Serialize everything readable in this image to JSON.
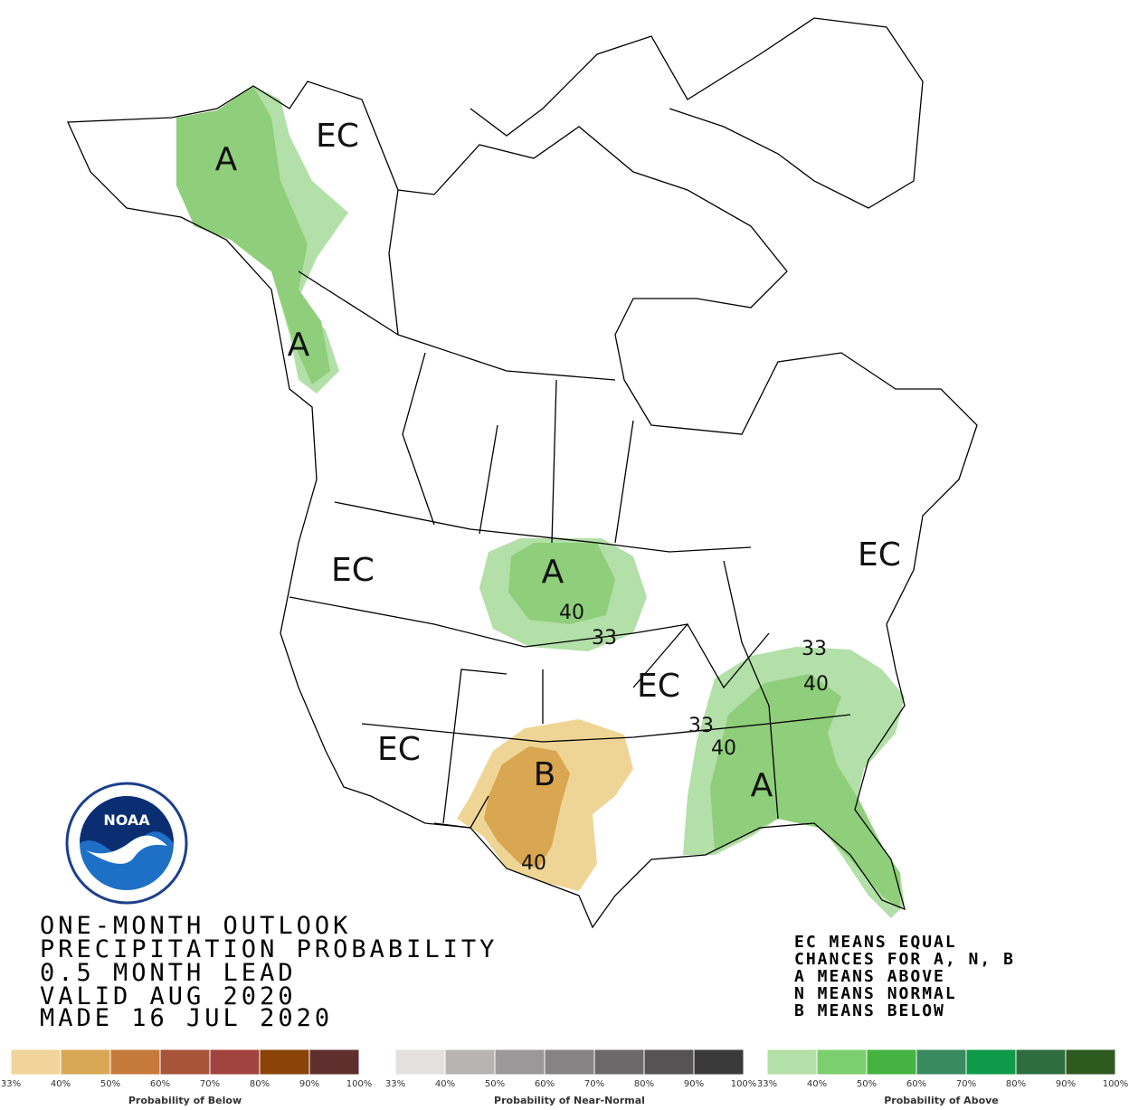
{
  "title_lines": [
    "ONE-MONTH OUTLOOK",
    "PRECIPITATION PROBABILITY",
    "0.5 MONTH LEAD",
    "VALID AUG 2020",
    "MADE 16 JUL 2020"
  ],
  "note_lines": [
    "EC MEANS EQUAL",
    "CHANCES FOR A, N, B",
    "A MEANS ABOVE",
    "N MEANS NORMAL",
    "B MEANS BELOW"
  ],
  "logo_text": "NOAA",
  "map_labels": [
    "EC",
    "A",
    "A",
    "EC",
    "A",
    "40",
    "33",
    "EC",
    "EC",
    "B",
    "40",
    "EC",
    "33",
    "40",
    "33",
    "40",
    "A"
  ],
  "color_scales": [
    {
      "title": "Probability of Below",
      "colors": [
        "#f0d49a",
        "#d9a856",
        "#c57a3c",
        "#a8543a",
        "#a1443f",
        "#8a4407",
        "#5e2f2d"
      ],
      "ticks": [
        "33%",
        "40%",
        "50%",
        "60%",
        "70%",
        "80%",
        "90%",
        "100%"
      ]
    },
    {
      "title": "Probability of Near-Normal",
      "colors": [
        "#e5e0e0",
        "#b8b4b4",
        "#9a9898",
        "#858383",
        "#6a6868",
        "#555353",
        "#3a3a3a"
      ],
      "ticks": [
        "33%",
        "40%",
        "50%",
        "60%",
        "70%",
        "80%",
        "90%",
        "100%"
      ]
    },
    {
      "title": "Probability of Above",
      "colors": [
        "#b3dfa8",
        "#7ccf6e",
        "#44b342",
        "#3a8a60",
        "#0f9a4a",
        "#2e6e3e",
        "#2d5a1e"
      ],
      "ticks": [
        "33%",
        "40%",
        "50%",
        "60%",
        "70%",
        "80%",
        "90%",
        "100%"
      ]
    }
  ]
}
